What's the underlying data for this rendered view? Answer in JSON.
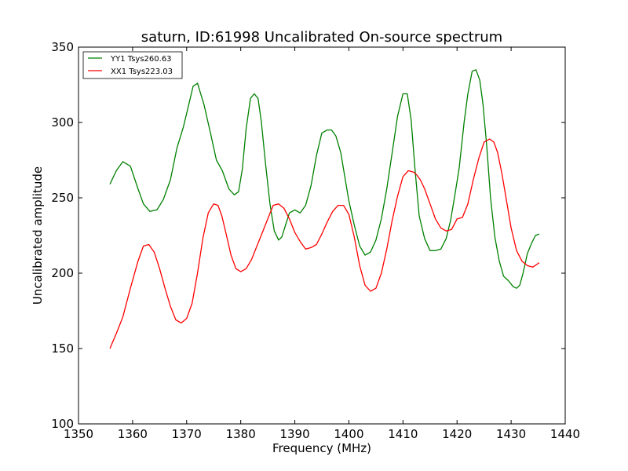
{
  "chart_data": {
    "type": "line",
    "title": "saturn, ID:61998 Uncalibrated On-source spectrum",
    "xlabel": "Frequency (MHz)",
    "ylabel": "Uncalibrated amplitude",
    "xlim": [
      1350,
      1440
    ],
    "ylim": [
      100,
      350
    ],
    "xticks": [
      1350,
      1360,
      1370,
      1380,
      1390,
      1400,
      1410,
      1420,
      1430,
      1440
    ],
    "yticks": [
      100,
      150,
      200,
      250,
      300,
      350
    ],
    "grid": false,
    "legend_position": "top-left",
    "series": [
      {
        "name": "YY1 Tsys260.63",
        "color": "#008000",
        "x": [
          1355.8,
          1357.0,
          1358.2,
          1359.6,
          1361.0,
          1362.0,
          1363.2,
          1364.5,
          1365.7,
          1367.0,
          1368.2,
          1369.4,
          1370.4,
          1371.2,
          1372.0,
          1373.2,
          1374.4,
          1375.5,
          1376.6,
          1377.8,
          1378.8,
          1379.6,
          1380.3,
          1381.0,
          1381.8,
          1382.5,
          1383.2,
          1383.8,
          1384.6,
          1385.4,
          1386.2,
          1387.0,
          1387.6,
          1388.2,
          1389.0,
          1390.0,
          1391.0,
          1392.0,
          1393.0,
          1394.0,
          1395.0,
          1396.0,
          1396.8,
          1397.6,
          1398.5,
          1399.2,
          1400.0,
          1401.0,
          1402.0,
          1403.0,
          1404.0,
          1405.0,
          1406.0,
          1407.0,
          1408.0,
          1409.0,
          1410.0,
          1410.8,
          1411.5,
          1412.2,
          1413.0,
          1414.0,
          1415.0,
          1416.0,
          1417.0,
          1418.0,
          1418.8,
          1419.6,
          1420.4,
          1421.3,
          1422.0,
          1422.8,
          1423.5,
          1424.2,
          1424.8,
          1425.5,
          1426.2,
          1427.0,
          1427.8,
          1428.6,
          1429.5,
          1430.4,
          1431.0,
          1431.6,
          1432.2,
          1433.0,
          1433.8,
          1434.5,
          1435.2
        ],
        "y": [
          259,
          268,
          274,
          271,
          256,
          246,
          241,
          242,
          249,
          262,
          283,
          297,
          312,
          324,
          326,
          312,
          293,
          275,
          268,
          256,
          252,
          254,
          269,
          296,
          316,
          319,
          316,
          301,
          272,
          246,
          228,
          222,
          224,
          231,
          240,
          242,
          240,
          245,
          258,
          278,
          293,
          295,
          295,
          291,
          280,
          265,
          248,
          232,
          218,
          212,
          214,
          222,
          236,
          256,
          280,
          304,
          319,
          319,
          302,
          270,
          238,
          223,
          215,
          215,
          216,
          223,
          235,
          252,
          270,
          300,
          319,
          334,
          335,
          328,
          312,
          284,
          250,
          224,
          208,
          198,
          195,
          191,
          190,
          192,
          200,
          213,
          220,
          225,
          226
        ]
      },
      {
        "name": "XX1 Tsys223.03",
        "color": "#ff0000",
        "x": [
          1355.8,
          1357.0,
          1358.2,
          1359.6,
          1361.0,
          1362.0,
          1363.0,
          1364.0,
          1365.0,
          1366.0,
          1367.0,
          1368.0,
          1369.0,
          1370.0,
          1371.0,
          1372.0,
          1373.0,
          1374.0,
          1375.0,
          1375.8,
          1376.5,
          1377.3,
          1378.2,
          1379.1,
          1380.0,
          1381.0,
          1382.0,
          1383.0,
          1384.0,
          1385.0,
          1386.0,
          1387.0,
          1388.0,
          1389.0,
          1390.0,
          1391.0,
          1392.0,
          1393.0,
          1394.0,
          1395.0,
          1396.0,
          1397.0,
          1398.0,
          1399.0,
          1400.0,
          1401.0,
          1402.0,
          1403.0,
          1404.0,
          1405.0,
          1406.0,
          1407.0,
          1408.0,
          1409.0,
          1410.0,
          1411.0,
          1412.0,
          1412.6,
          1413.2,
          1414.0,
          1415.0,
          1416.0,
          1417.0,
          1418.0,
          1419.0,
          1420.0,
          1421.0,
          1422.0,
          1423.0,
          1424.0,
          1425.0,
          1426.0,
          1426.8,
          1427.5,
          1428.3,
          1429.2,
          1430.0,
          1431.0,
          1432.0,
          1433.0,
          1434.0,
          1435.2
        ],
        "y": [
          150,
          160,
          171,
          190,
          208,
          218,
          219,
          214,
          203,
          190,
          178,
          169,
          167,
          170,
          180,
          200,
          223,
          240,
          246,
          245,
          238,
          226,
          212,
          203,
          201,
          203,
          209,
          218,
          227,
          236,
          245,
          246,
          243,
          236,
          227,
          221,
          216,
          217,
          219,
          226,
          234,
          241,
          245,
          245,
          239,
          224,
          205,
          192,
          188,
          190,
          200,
          216,
          235,
          251,
          264,
          268,
          267,
          265,
          262,
          256,
          246,
          236,
          230,
          228,
          229,
          236,
          237,
          246,
          262,
          276,
          287,
          289,
          287,
          280,
          266,
          247,
          230,
          215,
          208,
          205,
          204,
          207
        ]
      }
    ]
  }
}
